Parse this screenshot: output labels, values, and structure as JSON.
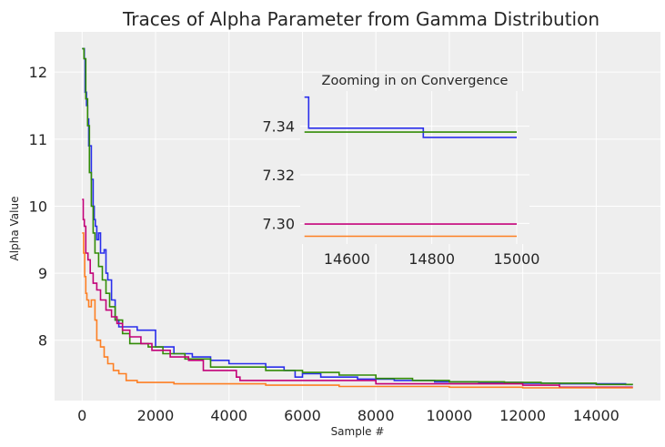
{
  "chart_data": [
    {
      "type": "line",
      "title": "Traces of Alpha Parameter from Gamma Distribution",
      "xlabel": "Sample #",
      "ylabel": "Alpha Value",
      "xlim": [
        -750,
        15750
      ],
      "ylim": [
        7.1,
        12.6
      ],
      "xticks": [
        0,
        2000,
        4000,
        6000,
        8000,
        10000,
        12000,
        14000
      ],
      "xtick_labels": [
        "0",
        "2000",
        "4000",
        "6000",
        "8000",
        "10000",
        "12000",
        "14000"
      ],
      "yticks": [
        8,
        9,
        10,
        11,
        12
      ],
      "ytick_labels": [
        "8",
        "9",
        "10",
        "11",
        "12"
      ],
      "grid": true,
      "series": [
        {
          "color": "#2a2eec",
          "points": [
            [
              0,
              12.35
            ],
            [
              60,
              12.35
            ],
            [
              60,
              12.2
            ],
            [
              80,
              12.2
            ],
            [
              80,
              11.7
            ],
            [
              120,
              11.7
            ],
            [
              120,
              11.5
            ],
            [
              150,
              11.5
            ],
            [
              150,
              11.3
            ],
            [
              180,
              11.3
            ],
            [
              180,
              10.9
            ],
            [
              250,
              10.9
            ],
            [
              250,
              10.4
            ],
            [
              300,
              10.4
            ],
            [
              300,
              10.0
            ],
            [
              330,
              10.0
            ],
            [
              330,
              9.8
            ],
            [
              360,
              9.8
            ],
            [
              360,
              9.7
            ],
            [
              400,
              9.7
            ],
            [
              400,
              9.5
            ],
            [
              450,
              9.5
            ],
            [
              450,
              9.6
            ],
            [
              500,
              9.6
            ],
            [
              500,
              9.3
            ],
            [
              600,
              9.3
            ],
            [
              600,
              9.35
            ],
            [
              650,
              9.35
            ],
            [
              650,
              9.0
            ],
            [
              700,
              9.0
            ],
            [
              700,
              8.9
            ],
            [
              800,
              8.9
            ],
            [
              800,
              8.6
            ],
            [
              900,
              8.6
            ],
            [
              900,
              8.3
            ],
            [
              1000,
              8.3
            ],
            [
              1000,
              8.2
            ],
            [
              1500,
              8.2
            ],
            [
              1500,
              8.15
            ],
            [
              2000,
              8.15
            ],
            [
              2000,
              7.9
            ],
            [
              2500,
              7.9
            ],
            [
              2500,
              7.8
            ],
            [
              3000,
              7.8
            ],
            [
              3000,
              7.75
            ],
            [
              3500,
              7.75
            ],
            [
              3500,
              7.7
            ],
            [
              4000,
              7.7
            ],
            [
              4000,
              7.65
            ],
            [
              5000,
              7.65
            ],
            [
              5000,
              7.6
            ],
            [
              5500,
              7.6
            ],
            [
              5500,
              7.55
            ],
            [
              5800,
              7.55
            ],
            [
              5800,
              7.45
            ],
            [
              6000,
              7.45
            ],
            [
              6000,
              7.5
            ],
            [
              6500,
              7.5
            ],
            [
              6500,
              7.45
            ],
            [
              7500,
              7.45
            ],
            [
              7500,
              7.42
            ],
            [
              8500,
              7.42
            ],
            [
              8500,
              7.4
            ],
            [
              9600,
              7.4
            ],
            [
              9600,
              7.38
            ],
            [
              10800,
              7.38
            ],
            [
              10800,
              7.37
            ],
            [
              12000,
              7.37
            ],
            [
              12000,
              7.36
            ],
            [
              13000,
              7.36
            ],
            [
              13000,
              7.35
            ],
            [
              14800,
              7.35
            ],
            [
              14800,
              7.34
            ],
            [
              15000,
              7.34
            ]
          ]
        },
        {
          "color": "#328c06",
          "points": [
            [
              0,
              12.35
            ],
            [
              50,
              12.35
            ],
            [
              50,
              12.2
            ],
            [
              100,
              12.2
            ],
            [
              100,
              11.6
            ],
            [
              150,
              11.6
            ],
            [
              150,
              11.2
            ],
            [
              200,
              11.2
            ],
            [
              200,
              10.5
            ],
            [
              250,
              10.5
            ],
            [
              250,
              10.0
            ],
            [
              300,
              10.0
            ],
            [
              300,
              9.6
            ],
            [
              350,
              9.6
            ],
            [
              350,
              9.3
            ],
            [
              450,
              9.3
            ],
            [
              450,
              9.1
            ],
            [
              550,
              9.1
            ],
            [
              550,
              8.9
            ],
            [
              650,
              8.9
            ],
            [
              650,
              8.7
            ],
            [
              750,
              8.7
            ],
            [
              750,
              8.5
            ],
            [
              900,
              8.5
            ],
            [
              900,
              8.3
            ],
            [
              1100,
              8.3
            ],
            [
              1100,
              8.1
            ],
            [
              1300,
              8.1
            ],
            [
              1300,
              7.95
            ],
            [
              1800,
              7.95
            ],
            [
              1800,
              7.9
            ],
            [
              2200,
              7.9
            ],
            [
              2200,
              7.8
            ],
            [
              2800,
              7.8
            ],
            [
              2800,
              7.72
            ],
            [
              3500,
              7.72
            ],
            [
              3500,
              7.6
            ],
            [
              5000,
              7.6
            ],
            [
              5000,
              7.55
            ],
            [
              6000,
              7.55
            ],
            [
              6000,
              7.52
            ],
            [
              7000,
              7.52
            ],
            [
              7000,
              7.48
            ],
            [
              8000,
              7.48
            ],
            [
              8000,
              7.43
            ],
            [
              9000,
              7.43
            ],
            [
              9000,
              7.4
            ],
            [
              10000,
              7.4
            ],
            [
              10000,
              7.38
            ],
            [
              11500,
              7.38
            ],
            [
              11500,
              7.37
            ],
            [
              12500,
              7.37
            ],
            [
              12500,
              7.36
            ],
            [
              14000,
              7.36
            ],
            [
              14000,
              7.34
            ],
            [
              15000,
              7.34
            ]
          ]
        },
        {
          "color": "#c20078",
          "points": [
            [
              0,
              10.1
            ],
            [
              30,
              10.1
            ],
            [
              30,
              9.8
            ],
            [
              60,
              9.8
            ],
            [
              60,
              9.7
            ],
            [
              100,
              9.7
            ],
            [
              100,
              9.3
            ],
            [
              160,
              9.3
            ],
            [
              160,
              9.2
            ],
            [
              220,
              9.2
            ],
            [
              220,
              9.0
            ],
            [
              300,
              9.0
            ],
            [
              300,
              8.85
            ],
            [
              400,
              8.85
            ],
            [
              400,
              8.75
            ],
            [
              500,
              8.75
            ],
            [
              500,
              8.6
            ],
            [
              650,
              8.6
            ],
            [
              650,
              8.45
            ],
            [
              800,
              8.45
            ],
            [
              800,
              8.35
            ],
            [
              950,
              8.35
            ],
            [
              950,
              8.25
            ],
            [
              1100,
              8.25
            ],
            [
              1100,
              8.15
            ],
            [
              1300,
              8.15
            ],
            [
              1300,
              8.05
            ],
            [
              1600,
              8.05
            ],
            [
              1600,
              7.95
            ],
            [
              1900,
              7.95
            ],
            [
              1900,
              7.85
            ],
            [
              2400,
              7.85
            ],
            [
              2400,
              7.75
            ],
            [
              2900,
              7.75
            ],
            [
              2900,
              7.7
            ],
            [
              3300,
              7.7
            ],
            [
              3300,
              7.55
            ],
            [
              4200,
              7.55
            ],
            [
              4200,
              7.45
            ],
            [
              4300,
              7.45
            ],
            [
              4300,
              7.4
            ],
            [
              8000,
              7.4
            ],
            [
              8000,
              7.35
            ],
            [
              12000,
              7.35
            ],
            [
              12000,
              7.33
            ],
            [
              13000,
              7.33
            ],
            [
              13000,
              7.3
            ],
            [
              15000,
              7.3
            ]
          ]
        },
        {
          "color": "#fd7f23",
          "points": [
            [
              0,
              9.6
            ],
            [
              40,
              9.6
            ],
            [
              40,
              9.3
            ],
            [
              70,
              9.3
            ],
            [
              70,
              8.95
            ],
            [
              100,
              8.95
            ],
            [
              100,
              8.7
            ],
            [
              130,
              8.7
            ],
            [
              130,
              8.6
            ],
            [
              180,
              8.6
            ],
            [
              180,
              8.5
            ],
            [
              250,
              8.5
            ],
            [
              250,
              8.6
            ],
            [
              350,
              8.6
            ],
            [
              350,
              8.3
            ],
            [
              400,
              8.3
            ],
            [
              400,
              8.0
            ],
            [
              500,
              8.0
            ],
            [
              500,
              7.9
            ],
            [
              600,
              7.9
            ],
            [
              600,
              7.75
            ],
            [
              700,
              7.75
            ],
            [
              700,
              7.65
            ],
            [
              850,
              7.65
            ],
            [
              850,
              7.55
            ],
            [
              1000,
              7.55
            ],
            [
              1000,
              7.5
            ],
            [
              1200,
              7.5
            ],
            [
              1200,
              7.4
            ],
            [
              1500,
              7.4
            ],
            [
              1500,
              7.37
            ],
            [
              2500,
              7.37
            ],
            [
              2500,
              7.35
            ],
            [
              5000,
              7.35
            ],
            [
              5000,
              7.33
            ],
            [
              7000,
              7.33
            ],
            [
              7000,
              7.31
            ],
            [
              10000,
              7.31
            ],
            [
              10000,
              7.3
            ],
            [
              12000,
              7.3
            ],
            [
              12000,
              7.29
            ],
            [
              15000,
              7.29
            ]
          ]
        }
      ]
    },
    {
      "type": "line",
      "title": "Zooming in on Convergence",
      "xlim": [
        14490,
        15030
      ],
      "ylim": [
        7.2915,
        7.3545
      ],
      "xticks": [
        14600,
        14800,
        15000
      ],
      "xtick_labels": [
        "14600",
        "14800",
        "15000"
      ],
      "yticks": [
        7.3,
        7.32,
        7.34
      ],
      "ytick_labels": [
        "7.30",
        "7.32",
        "7.34"
      ],
      "grid": true,
      "series": [
        {
          "color": "#2a2eec",
          "points": [
            [
              14500,
              7.352
            ],
            [
              14510,
              7.352
            ],
            [
              14510,
              7.3392
            ],
            [
              14780,
              7.3392
            ],
            [
              14780,
              7.3354
            ],
            [
              15000,
              7.3354
            ]
          ]
        },
        {
          "color": "#328c06",
          "points": [
            [
              14500,
              7.3376
            ],
            [
              15000,
              7.3376
            ]
          ]
        },
        {
          "color": "#c20078",
          "points": [
            [
              14500,
              7.2997
            ],
            [
              15000,
              7.2997
            ]
          ]
        },
        {
          "color": "#fd7f23",
          "points": [
            [
              14500,
              7.2947
            ],
            [
              15000,
              7.2947
            ]
          ]
        }
      ]
    }
  ]
}
